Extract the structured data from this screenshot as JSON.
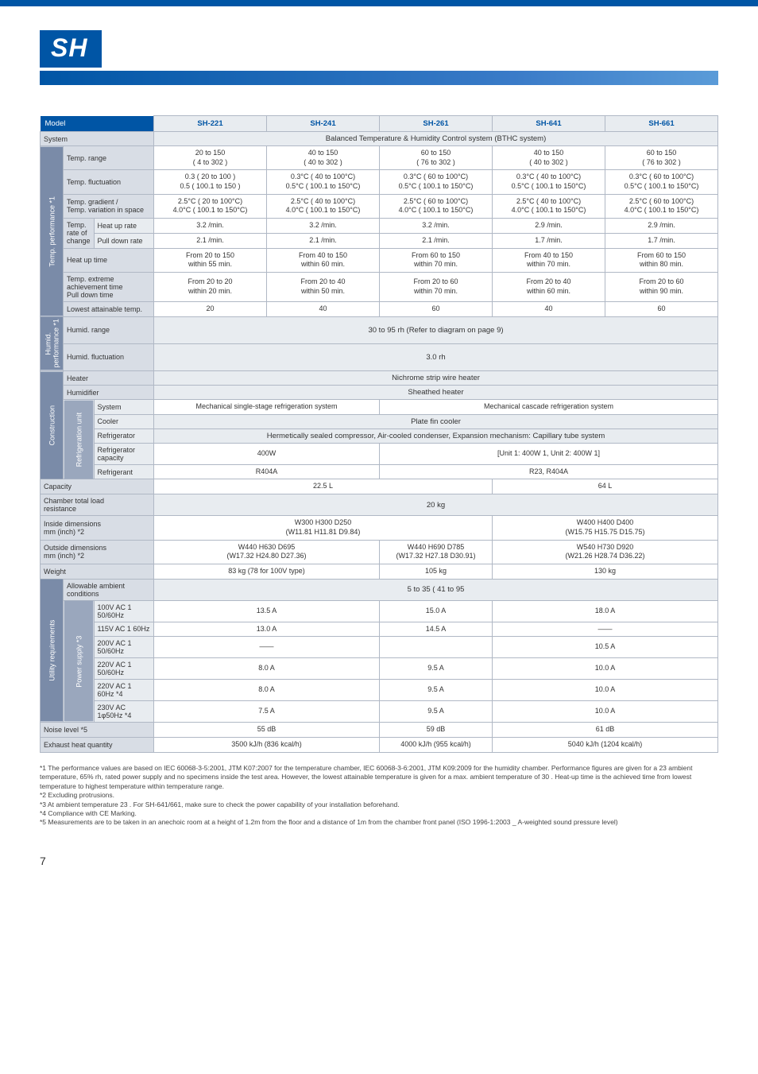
{
  "page_number": "7",
  "title": "SH",
  "colors": {
    "primary": "#0055a5",
    "header_bg": "#e8ecf0",
    "rowlabel_bg": "#d8dde5",
    "vlabel_bg": "#7a8ba8",
    "border": "#b0b8c5"
  },
  "header": {
    "model": "Model",
    "cols": [
      "SH-221",
      "SH-241",
      "SH-261",
      "SH-641",
      "SH-661"
    ]
  },
  "rows": {
    "system": {
      "label": "System",
      "value": "Balanced Temperature & Humidity Control system (BTHC system)"
    },
    "temp_section": "Temp. performance *1",
    "temp_range": {
      "label": "Temp. range",
      "vals": [
        " 20 to  150\n(  4 to  302 )",
        " 40 to  150\n(  40 to  302 )",
        " 60 to  150\n(  76 to  302 )",
        " 40 to  150\n(  40 to  302 )",
        " 60 to  150\n(  76 to  302 )"
      ]
    },
    "temp_fluct": {
      "label": "Temp. fluctuation",
      "vals": [
        "0.3  (  20 to  100 )\n0.5  (  100.1 to  150 )",
        "0.3°C (  40 to  100°C)\n0.5°C (  100.1 to  150°C)",
        "0.3°C (  60 to  100°C)\n0.5°C (  100.1 to  150°C)",
        "0.3°C (  40 to  100°C)\n0.5°C (  100.1 to  150°C)",
        "0.3°C (  60 to  100°C)\n0.5°C (  100.1 to  150°C)"
      ]
    },
    "temp_grad": {
      "label": "Temp. gradient /\nTemp. variation in space",
      "vals": [
        "2.5°C (  20 to  100°C)\n4.0°C (  100.1 to  150°C)",
        "2.5°C (  40 to  100°C)\n4.0°C (  100.1 to  150°C)",
        "2.5°C (  60 to  100°C)\n4.0°C (  100.1 to  150°C)",
        "2.5°C (  40 to  100°C)\n4.0°C (  100.1 to  150°C)",
        "2.5°C (  60 to  100°C)\n4.0°C (  100.1 to  150°C)"
      ]
    },
    "rate_label": "Temp.\nrate of\nchange",
    "heat_rate": {
      "label": "Heat up rate",
      "vals": [
        "3.2  /min.",
        "3.2  /min.",
        "3.2  /min.",
        "2.9  /min.",
        "2.9  /min."
      ]
    },
    "pull_rate": {
      "label": "Pull down rate",
      "vals": [
        "2.1  /min.",
        "2.1  /min.",
        "2.1  /min.",
        "1.7  /min.",
        "1.7  /min."
      ]
    },
    "heat_up": {
      "label": "Heat up time",
      "vals": [
        "From  20 to  150\nwithin 55 min.",
        "From  40 to  150\nwithin 60 min.",
        "From  60 to  150\nwithin 70 min.",
        "From  40 to  150\nwithin 70 min.",
        "From  60 to  150\nwithin 80 min."
      ]
    },
    "temp_ext": {
      "label": "Temp. extreme\nachievement time\nPull down time",
      "vals": [
        "From  20 to  20\nwithin 20 min.",
        "From  20 to  40\nwithin 50 min.",
        "From  20 to  60\nwithin 70 min.",
        "From  20 to  40\nwithin 60 min.",
        "From  20 to  60\nwithin 90 min."
      ]
    },
    "lowest": {
      "label": "Lowest attainable temp.",
      "vals": [
        " 20",
        " 40",
        " 60",
        " 40",
        " 60"
      ]
    },
    "humid_section": "Humid.\nperformance *1",
    "hum_range": {
      "label": "Humid. range",
      "value": "30 to 95  rh (Refer to diagram on page 9)"
    },
    "hum_fluct": {
      "label": "Humid. fluctuation",
      "value": " 3.0  rh"
    },
    "constr_section": "Construction",
    "heater": {
      "label": "Heater",
      "value": "Nichrome strip wire heater"
    },
    "humidifier": {
      "label": "Humidifier",
      "value": "Sheathed heater"
    },
    "refrig_unit": "Refrigeration unit",
    "r_system": {
      "label": "System",
      "v1": "Mechanical single-stage refrigeration system",
      "v2": "Mechanical cascade refrigeration system"
    },
    "cooler": {
      "label": "Cooler",
      "value": "Plate fin cooler"
    },
    "refrigerator": {
      "label": "Refrigerator",
      "value": "Hermetically sealed compressor, Air-cooled condenser, Expansion mechanism: Capillary tube system"
    },
    "r_cap": {
      "label": "Refrigerator capacity",
      "v1": "400W",
      "v2": "[Unit 1: 400W  1, Unit 2: 400W  1]"
    },
    "refrigerant": {
      "label": "Refrigerant",
      "v1": "R404A",
      "v2": "R23, R404A"
    },
    "capacity": {
      "label": "Capacity",
      "v1": "22.5 L",
      "v2": "64 L"
    },
    "chamber_load": {
      "label": "Chamber total load\nresistance",
      "value": "20 kg"
    },
    "inside_dim": {
      "label": "Inside dimensions\nmm (inch) *2",
      "v1": "W300  H300  D250\n(W11.81  H11.81  D9.84)",
      "v2": "W400  H400  D400\n(W15.75  H15.75  D15.75)"
    },
    "outside_dim": {
      "label": "Outside dimensions\nmm (inch) *2",
      "vals": [
        "W440  H630  D695\n(W17.32  H24.80  D27.36)",
        "W440 H690 D785\n(W17.32  H27.18  D30.91)",
        "W540  H730  D920\n(W21.26  H28.74  D36.22)"
      ]
    },
    "weight": {
      "label": "Weight",
      "v1": "83 kg (78 for 100V type)",
      "v2": "105 kg",
      "v3": "130 kg"
    },
    "util_section": "Utility requirements",
    "ambient": {
      "label": "Allowable ambient conditions",
      "value": " 5 to  35  (  41 to  95 "
    },
    "power_supply": "Power supply *3",
    "ps": [
      {
        "label": "100V AC 1  50/60Hz",
        "vals": [
          "13.5 A",
          "15.0 A",
          "18.0 A"
        ]
      },
      {
        "label": "115V AC 1  60Hz",
        "vals": [
          "13.0 A",
          "14.5 A",
          "——"
        ]
      },
      {
        "label": "200V AC 1  50/60Hz",
        "vals": [
          "——",
          "",
          "10.5 A"
        ]
      },
      {
        "label": "220V AC 1  50/60Hz",
        "vals": [
          "8.0 A",
          "9.5 A",
          "10.0 A"
        ]
      },
      {
        "label": "220V AC 1  60Hz *4",
        "vals": [
          "8.0 A",
          "9.5 A",
          "10.0 A"
        ]
      },
      {
        "label": "230V AC 1φ50Hz *4",
        "vals": [
          "7.5 A",
          "9.5 A",
          "10.0 A"
        ]
      }
    ],
    "noise": {
      "label": "Noise level *5",
      "vals": [
        "55 dB",
        "59 dB",
        "61 dB"
      ]
    },
    "exhaust": {
      "label": "Exhaust heat quantity",
      "vals": [
        "3500 kJ/h (836 kcal/h)",
        "4000 kJ/h (955 kcal/h)",
        "5040 kJ/h (1204 kcal/h)"
      ]
    }
  },
  "notes": [
    "*1 The performance values are based on IEC 60068-3-5:2001, JTM K07:2007 for the temperature chamber, IEC 60068-3-6:2001, JTM K09:2009 for the humidity chamber. Performance figures are given for a  23  ambient temperature, 65% rh, rated power supply and no specimens inside the test area. However, the lowest attainable temperature is given for a max. ambient temperature of  30 . Heat-up time is the achieved time from lowest temperature to highest temperature within temperature range.",
    "*2 Excluding protrusions.",
    "*3 At ambient temperature  23 . For SH-641/661, make sure to check the power capability of your installation beforehand.",
    "*4 Compliance with CE Marking.",
    "*5 Measurements are to be taken in an anechoic room at a height of 1.2m from the floor and a distance of 1m from the chamber front panel (ISO 1996-1:2003 _ A-weighted sound pressure level)"
  ]
}
